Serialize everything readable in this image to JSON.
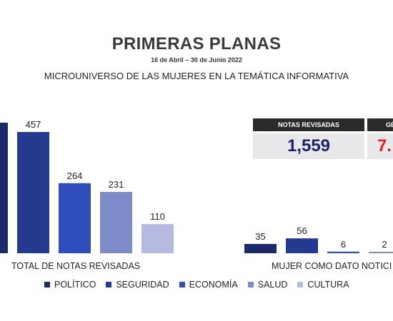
{
  "header": {
    "title": "PRIMERAS PLANAS",
    "subtitle": "16 de Abril – 30 de Junio 2022",
    "heading": "MICROUNIVERSO DE LAS MUJERES EN LA TEMÁTICA INFORMATIVA"
  },
  "stats": {
    "notas": {
      "label": "NOTAS REVISADAS",
      "value": "1,559",
      "color": "#1b2466"
    },
    "genero": {
      "label": "GÉ",
      "value": "7.",
      "color": "#e02020"
    }
  },
  "chart_data": {
    "type": "bar",
    "groups": [
      "TOTAL DE NOTAS REVISADAS",
      "MUJER COMO DATO NOTICI"
    ],
    "series": [
      {
        "name": "POLÍTICO",
        "color": "#1b2a6b",
        "values": [
          null,
          35
        ]
      },
      {
        "name": "SEGURIDAD",
        "color": "#233a8f",
        "values": [
          457,
          56
        ]
      },
      {
        "name": "ECONOMÍA",
        "color": "#2f4ebb",
        "values": [
          264,
          6
        ]
      },
      {
        "name": "SALUD",
        "color": "#7f8ac9",
        "values": [
          231,
          2
        ]
      },
      {
        "name": "CULTURA",
        "color": "#b5bbe0",
        "values": [
          110,
          null
        ]
      }
    ],
    "grid": false,
    "legend_position": "bottom"
  }
}
